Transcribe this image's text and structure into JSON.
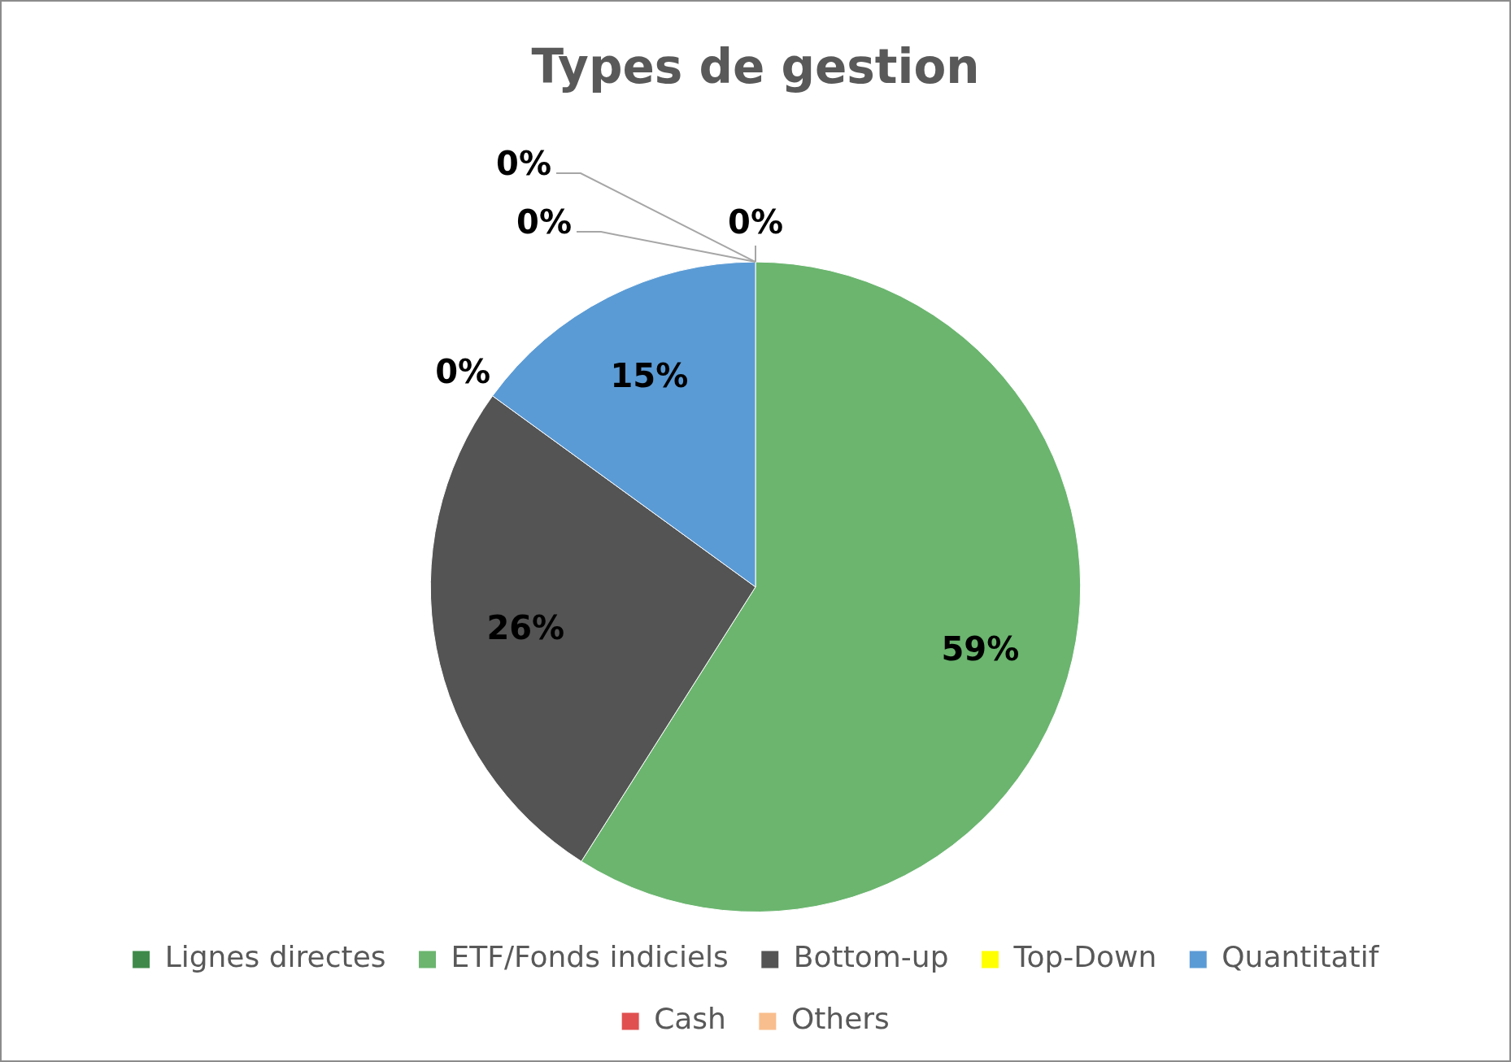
{
  "chart_data": {
    "type": "pie",
    "title": "Types de gestion",
    "categories": [
      "Lignes directes",
      "ETF/Fonds indiciels",
      "Bottom-up",
      "Top-Down",
      "Quantitatif",
      "Cash",
      "Others"
    ],
    "values": [
      0,
      59,
      26,
      0,
      15,
      0,
      0
    ],
    "colors": [
      "#3f8a4a",
      "#6bb56f",
      "#545454",
      "#ffff00",
      "#5b9bd5",
      "#e05050",
      "#f9be8e"
    ],
    "value_labels": [
      "0%",
      "59%",
      "26%",
      "0%",
      "15%",
      "0%",
      "0%"
    ],
    "legend": "bottom"
  }
}
